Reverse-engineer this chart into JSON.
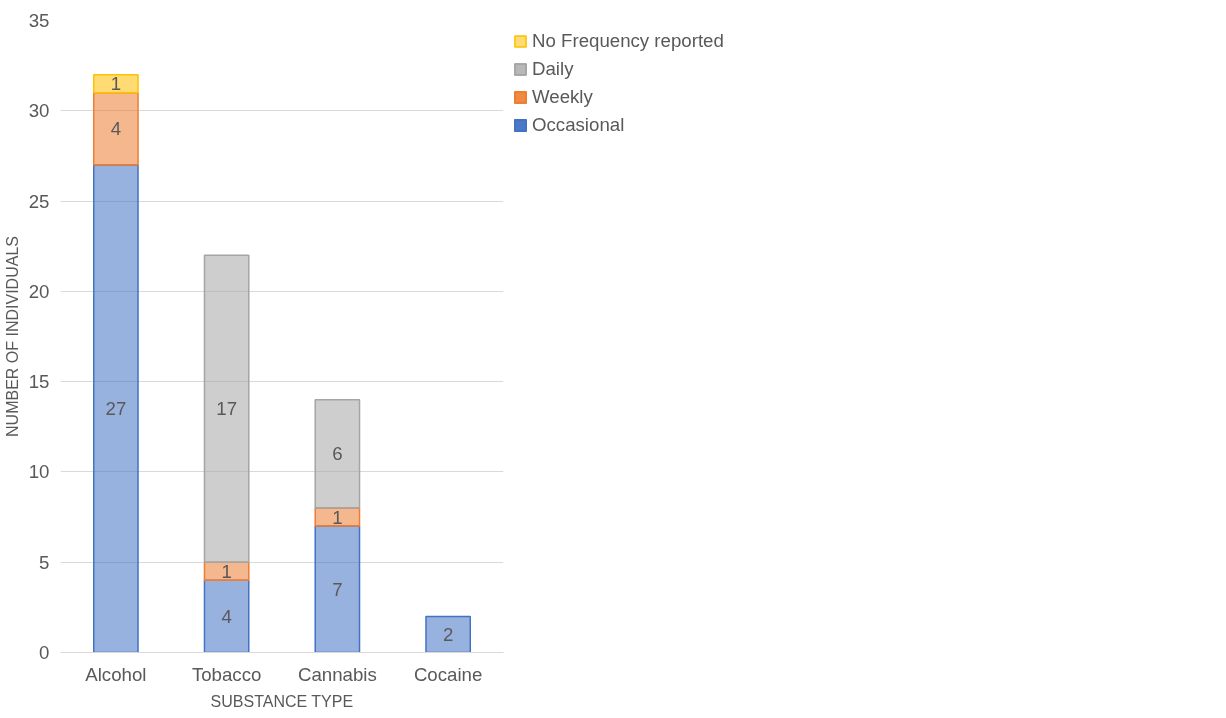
{
  "chart_data": {
    "type": "bar",
    "stacked": true,
    "xlabel": "SUBSTANCE TYPE",
    "ylabel": "NUMBER OF INDIVIDUALS",
    "categories": [
      "Alcohol",
      "Tobacco",
      "Cannabis",
      "Cocaine"
    ],
    "series": [
      {
        "name": "Occasional",
        "color": "#4472c4",
        "values": [
          27,
          4,
          7,
          2
        ]
      },
      {
        "name": "Weekly",
        "color": "#ed7d31",
        "values": [
          4,
          1,
          1,
          null
        ]
      },
      {
        "name": "Daily",
        "color": "#a5a5a5",
        "values": [
          null,
          17,
          6,
          null
        ]
      },
      {
        "name": "No Frequency reported",
        "color": "#ffc000",
        "values": [
          1,
          null,
          null,
          null
        ]
      }
    ],
    "ylim": [
      0,
      35
    ],
    "yticks": [
      0,
      5,
      10,
      15,
      20,
      25,
      30,
      35
    ],
    "grid": "y",
    "legend": "right",
    "data_labels": true
  }
}
